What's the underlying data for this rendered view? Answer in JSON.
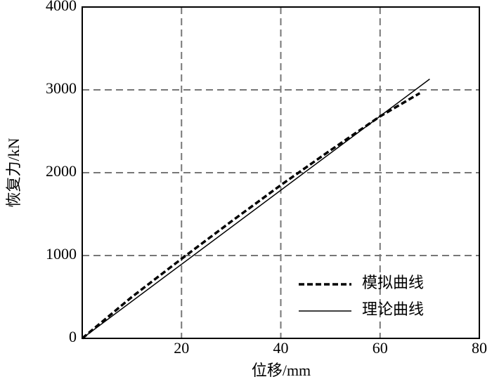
{
  "chart_data": {
    "type": "line",
    "x_label": "位移/mm",
    "y_label": "恢复力/kN",
    "xlim": [
      0,
      80
    ],
    "ylim": [
      0,
      4000
    ],
    "xticks": [
      20,
      40,
      60,
      80
    ],
    "yticks": [
      0,
      1000,
      2000,
      3000,
      4000
    ],
    "grid": true,
    "legend": "lower right",
    "series": [
      {
        "name": "模拟曲线",
        "color": "#000000",
        "dash": true,
        "x": [
          0,
          10,
          20,
          30,
          40,
          50,
          60,
          68
        ],
        "values": [
          0,
          500,
          960,
          1410,
          1850,
          2270,
          2680,
          2960
        ]
      },
      {
        "name": "理论曲线",
        "color": "#000000",
        "dash": false,
        "x": [
          0,
          70
        ],
        "values": [
          0,
          3130
        ]
      }
    ]
  }
}
